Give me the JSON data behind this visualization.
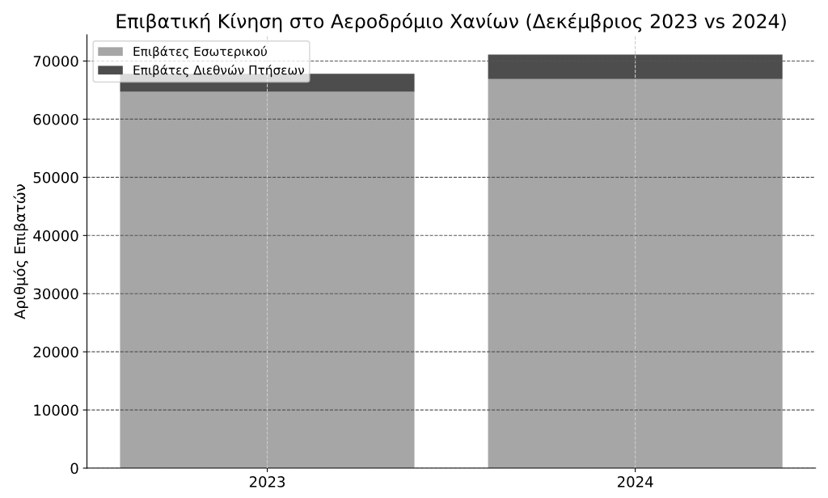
{
  "chart_data": {
    "type": "bar",
    "title": "Επιβατική Κίνηση στο Αεροδρόμιο Χανίων (Δεκέμβριος 2023 vs 2024)",
    "ylabel": "Αριθμός Επιβατών",
    "categories": [
      "2023",
      "2024"
    ],
    "stacked": true,
    "series": [
      {
        "name": "Επιβάτες Εσωτερικού",
        "color": "#a6a6a6",
        "values": [
          64700,
          66900
        ]
      },
      {
        "name": "Επιβάτες Διεθνών Πτήσεων",
        "color": "#4d4d4d",
        "values": [
          3100,
          4200
        ]
      }
    ],
    "ylim": [
      0,
      74500
    ],
    "yticks": [
      0,
      10000,
      20000,
      30000,
      40000,
      50000,
      60000,
      70000
    ],
    "grid": true,
    "legend": "top left"
  }
}
